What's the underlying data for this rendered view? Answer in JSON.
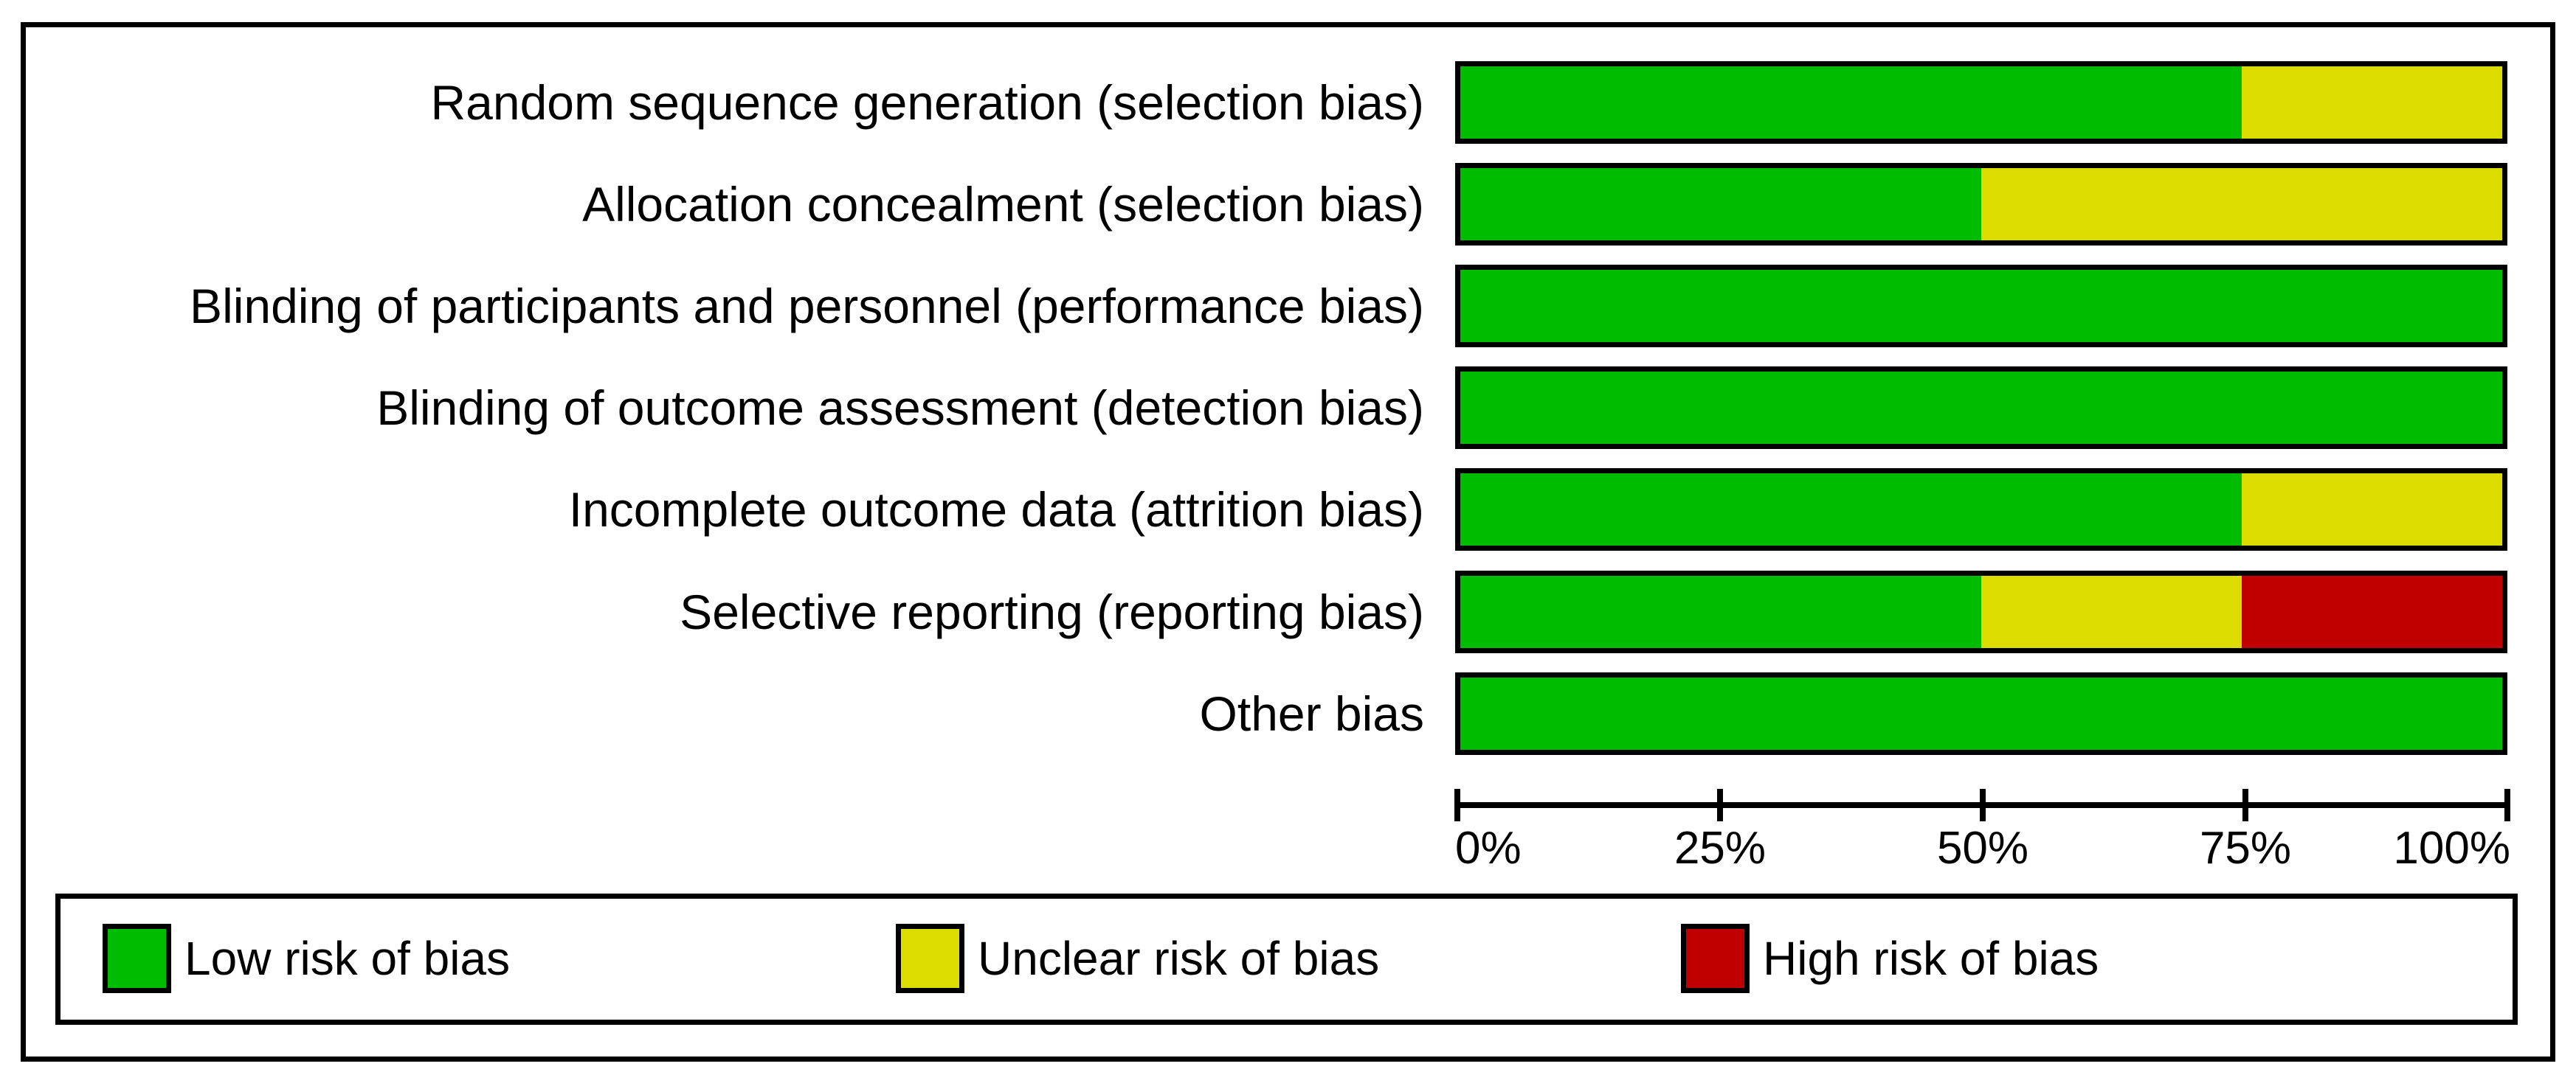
{
  "palette": {
    "low": "#00bc00",
    "unclear": "#dcdc00",
    "high": "#c00000",
    "frame": "#000000",
    "background": "#ffffff"
  },
  "chart_data": {
    "type": "bar",
    "orientation": "horizontal_stacked",
    "title": "",
    "xlabel": "",
    "ylabel": "",
    "xlim": [
      0,
      100
    ],
    "grid": false,
    "legend_position": "bottom",
    "categories": [
      "Random sequence generation (selection bias)",
      "Allocation concealment (selection bias)",
      "Blinding of participants and personnel (performance bias)",
      "Blinding of outcome assessment (detection bias)",
      "Incomplete outcome data (attrition bias)",
      "Selective reporting (reporting bias)",
      "Other bias"
    ],
    "series": [
      {
        "name": "Low risk of bias",
        "color_key": "low",
        "values": [
          75,
          50,
          100,
          100,
          75,
          50,
          100
        ]
      },
      {
        "name": "Unclear risk of bias",
        "color_key": "unclear",
        "values": [
          25,
          50,
          0,
          0,
          25,
          25,
          0
        ]
      },
      {
        "name": "High risk of bias",
        "color_key": "high",
        "values": [
          0,
          0,
          0,
          0,
          0,
          25,
          0
        ]
      }
    ],
    "x_tick_labels": [
      "0%",
      "25%",
      "50%",
      "75%",
      "100%"
    ]
  },
  "legend": {
    "items": [
      {
        "label": "Low risk of bias",
        "color_key": "low"
      },
      {
        "label": "Unclear risk of bias",
        "color_key": "unclear"
      },
      {
        "label": "High risk of bias",
        "color_key": "high"
      }
    ]
  }
}
